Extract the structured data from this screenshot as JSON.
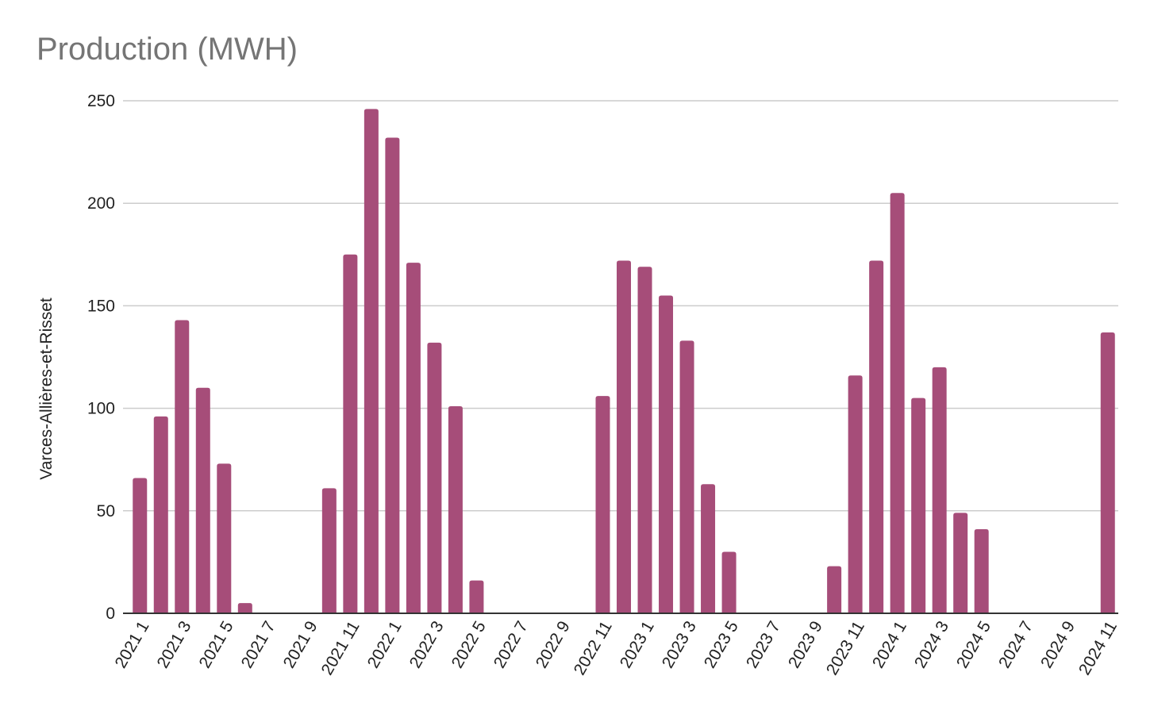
{
  "chart_data": {
    "type": "bar",
    "title": "Production (MWH)",
    "xlabel": "",
    "ylabel": "Varces-Allières-et-Risset",
    "ylim": [
      0,
      250
    ],
    "yticks": [
      0,
      50,
      100,
      150,
      200,
      250
    ],
    "grid": true,
    "legend": "none",
    "bar_color": "#a64d79",
    "categories": [
      "2021 1",
      "2021 2",
      "2021 3",
      "2021 4",
      "2021 5",
      "2021 6",
      "2021 7",
      "2021 8",
      "2021 9",
      "2021 10",
      "2021 11",
      "2021 12",
      "2022 1",
      "2022 2",
      "2022 3",
      "2022 4",
      "2022 5",
      "2022 6",
      "2022 7",
      "2022 8",
      "2022 9",
      "2022 10",
      "2022 11",
      "2022 12",
      "2023 1",
      "2023 2",
      "2023 3",
      "2023 4",
      "2023 5",
      "2023 6",
      "2023 7",
      "2023 8",
      "2023 9",
      "2023 10",
      "2023 11",
      "2023 12",
      "2024 1",
      "2024 2",
      "2024 3",
      "2024 4",
      "2024 5",
      "2024 6",
      "2024 7",
      "2024 8",
      "2024 9",
      "2024 10",
      "2024 11"
    ],
    "xtick_labels": [
      "2021 1",
      "2021 3",
      "2021 5",
      "2021 7",
      "2021 9",
      "2021 11",
      "2022 1",
      "2022 3",
      "2022 5",
      "2022 7",
      "2022 9",
      "2022 11",
      "2023 1",
      "2023 3",
      "2023 5",
      "2023 7",
      "2023 9",
      "2023 11",
      "2024 1",
      "2024 3",
      "2024 5",
      "2024 7",
      "2024 9",
      "2024 11"
    ],
    "values": [
      66,
      96,
      143,
      110,
      73,
      5,
      0,
      0,
      0,
      61,
      175,
      246,
      232,
      171,
      132,
      101,
      16,
      0,
      0,
      0,
      0,
      0,
      106,
      172,
      169,
      155,
      133,
      63,
      30,
      0,
      0,
      0,
      0,
      23,
      116,
      172,
      205,
      105,
      120,
      49,
      41,
      0,
      0,
      0,
      0,
      0,
      137
    ]
  }
}
